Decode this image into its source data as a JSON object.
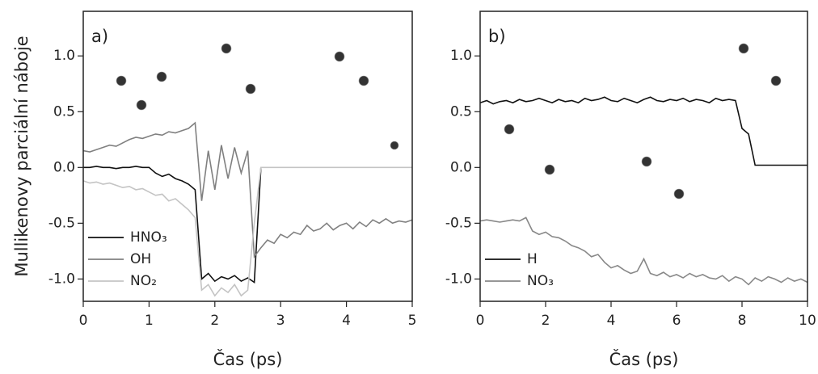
{
  "chart_data": [
    {
      "type": "line",
      "panel_label": "a)",
      "ylabel": "Mullikenovy parciální náboje",
      "xlabel": "Čas (ps)",
      "xlim": [
        0,
        5
      ],
      "xticks": [
        0,
        1,
        2,
        3,
        4,
        5
      ],
      "ylim": [
        -1.2,
        1.4
      ],
      "yticks": [
        {
          "value": -1,
          "label": "-1.0"
        },
        -0.5,
        {
          "value": 0,
          "label": "0.0"
        },
        0.5,
        {
          "value": 1,
          "label": "1.0"
        }
      ],
      "legend": "lower left",
      "x": [
        0,
        0.1,
        0.2,
        0.3,
        0.4,
        0.5,
        0.6,
        0.7,
        0.8,
        0.9,
        1,
        1.1,
        1.2,
        1.3,
        1.4,
        1.5,
        1.6,
        1.7,
        1.8,
        1.9,
        2,
        2.1,
        2.2,
        2.3,
        2.4,
        2.5,
        2.6,
        2.7,
        2.8,
        2.9,
        3,
        3.1,
        3.2,
        3.3,
        3.4,
        3.5,
        3.6,
        3.7,
        3.8,
        3.9,
        4,
        4.1,
        4.2,
        4.3,
        4.4,
        4.5,
        4.6,
        4.7,
        4.8,
        4.9,
        5
      ],
      "series": [
        {
          "name": "HNO₃",
          "color": "#111111",
          "values": [
            0,
            0,
            0.01,
            0,
            0,
            -0.01,
            0,
            0,
            0.01,
            0,
            0,
            -0.05,
            -0.08,
            -0.06,
            -0.1,
            -0.12,
            -0.15,
            -0.2,
            -1.0,
            -0.95,
            -1.02,
            -0.98,
            -1.0,
            -0.97,
            -1.02,
            -0.99,
            -1.03,
            0.0,
            null,
            null,
            null,
            null,
            null,
            null,
            null,
            null,
            null,
            null,
            null,
            null,
            null,
            null,
            null,
            null,
            null,
            null,
            null,
            null,
            null,
            null,
            null
          ]
        },
        {
          "name": "OH",
          "color": "#808080",
          "values": [
            0.15,
            0.14,
            0.16,
            0.18,
            0.2,
            0.19,
            0.22,
            0.25,
            0.27,
            0.26,
            0.28,
            0.3,
            0.29,
            0.32,
            0.31,
            0.33,
            0.35,
            0.4,
            -0.3,
            0.15,
            -0.2,
            0.2,
            -0.1,
            0.18,
            -0.05,
            0.15,
            -0.8,
            -0.72,
            -0.65,
            -0.68,
            -0.6,
            -0.63,
            -0.58,
            -0.6,
            -0.52,
            -0.57,
            -0.55,
            -0.5,
            -0.56,
            -0.52,
            -0.5,
            -0.55,
            -0.49,
            -0.53,
            -0.47,
            -0.5,
            -0.46,
            -0.5,
            -0.48,
            -0.49,
            -0.47
          ]
        },
        {
          "name": "NO₂",
          "color": "#c4c4c4",
          "values": [
            -0.12,
            -0.14,
            -0.13,
            -0.15,
            -0.14,
            -0.16,
            -0.18,
            -0.17,
            -0.2,
            -0.19,
            -0.22,
            -0.25,
            -0.24,
            -0.3,
            -0.28,
            -0.33,
            -0.38,
            -0.45,
            -1.1,
            -1.05,
            -1.15,
            -1.08,
            -1.12,
            -1.05,
            -1.15,
            -1.1,
            -0.5,
            0,
            0,
            0,
            0,
            0,
            0,
            0,
            0,
            0,
            0,
            0,
            0,
            0,
            0,
            0,
            0,
            0,
            0,
            0,
            0,
            0,
            0,
            0,
            0
          ]
        }
      ]
    },
    {
      "type": "line",
      "panel_label": "b)",
      "xlabel": "Čas (ps)",
      "xlim": [
        0,
        10
      ],
      "xticks": [
        0,
        2,
        4,
        6,
        8,
        10
      ],
      "ylim": [
        -1.2,
        1.4
      ],
      "yticks": [
        {
          "value": -1,
          "label": "-1.0"
        },
        -0.5,
        {
          "value": 0,
          "label": "0.0"
        },
        0.5,
        {
          "value": 1,
          "label": "1.0"
        }
      ],
      "legend": "lower left",
      "x": [
        0,
        0.2,
        0.4,
        0.6,
        0.8,
        1,
        1.2,
        1.4,
        1.6,
        1.8,
        2,
        2.2,
        2.4,
        2.6,
        2.8,
        3,
        3.2,
        3.4,
        3.6,
        3.8,
        4,
        4.2,
        4.4,
        4.6,
        4.8,
        5,
        5.2,
        5.4,
        5.6,
        5.8,
        6,
        6.2,
        6.4,
        6.6,
        6.8,
        7,
        7.2,
        7.4,
        7.6,
        7.8,
        8,
        8.2,
        8.4,
        8.6,
        8.8,
        9,
        9.2,
        9.4,
        9.6,
        9.8,
        10
      ],
      "series": [
        {
          "name": "H",
          "color": "#111111",
          "values": [
            0.58,
            0.6,
            0.57,
            0.59,
            0.6,
            0.58,
            0.61,
            0.59,
            0.6,
            0.62,
            0.6,
            0.58,
            0.61,
            0.59,
            0.6,
            0.58,
            0.62,
            0.6,
            0.61,
            0.63,
            0.6,
            0.59,
            0.62,
            0.6,
            0.58,
            0.61,
            0.63,
            0.6,
            0.59,
            0.61,
            0.6,
            0.62,
            0.59,
            0.61,
            0.6,
            0.58,
            0.62,
            0.6,
            0.61,
            0.6,
            0.35,
            0.3,
            0.02,
            0.02,
            0.02,
            0.02,
            0.02,
            0.02,
            0.02,
            0.02,
            0.02
          ]
        },
        {
          "name": "NO₃",
          "color": "#888888",
          "values": [
            -0.48,
            -0.47,
            -0.48,
            -0.49,
            -0.48,
            -0.47,
            -0.48,
            -0.45,
            -0.57,
            -0.6,
            -0.58,
            -0.62,
            -0.63,
            -0.66,
            -0.7,
            -0.72,
            -0.75,
            -0.8,
            -0.78,
            -0.85,
            -0.9,
            -0.88,
            -0.92,
            -0.95,
            -0.93,
            -0.82,
            -0.95,
            -0.97,
            -0.94,
            -0.98,
            -0.96,
            -0.99,
            -0.95,
            -0.98,
            -0.96,
            -0.99,
            -1.0,
            -0.97,
            -1.02,
            -0.98,
            -1.0,
            -1.05,
            -0.99,
            -1.02,
            -0.98,
            -1.0,
            -1.03,
            -0.99,
            -1.02,
            -1.0,
            -1.03
          ]
        }
      ]
    }
  ]
}
